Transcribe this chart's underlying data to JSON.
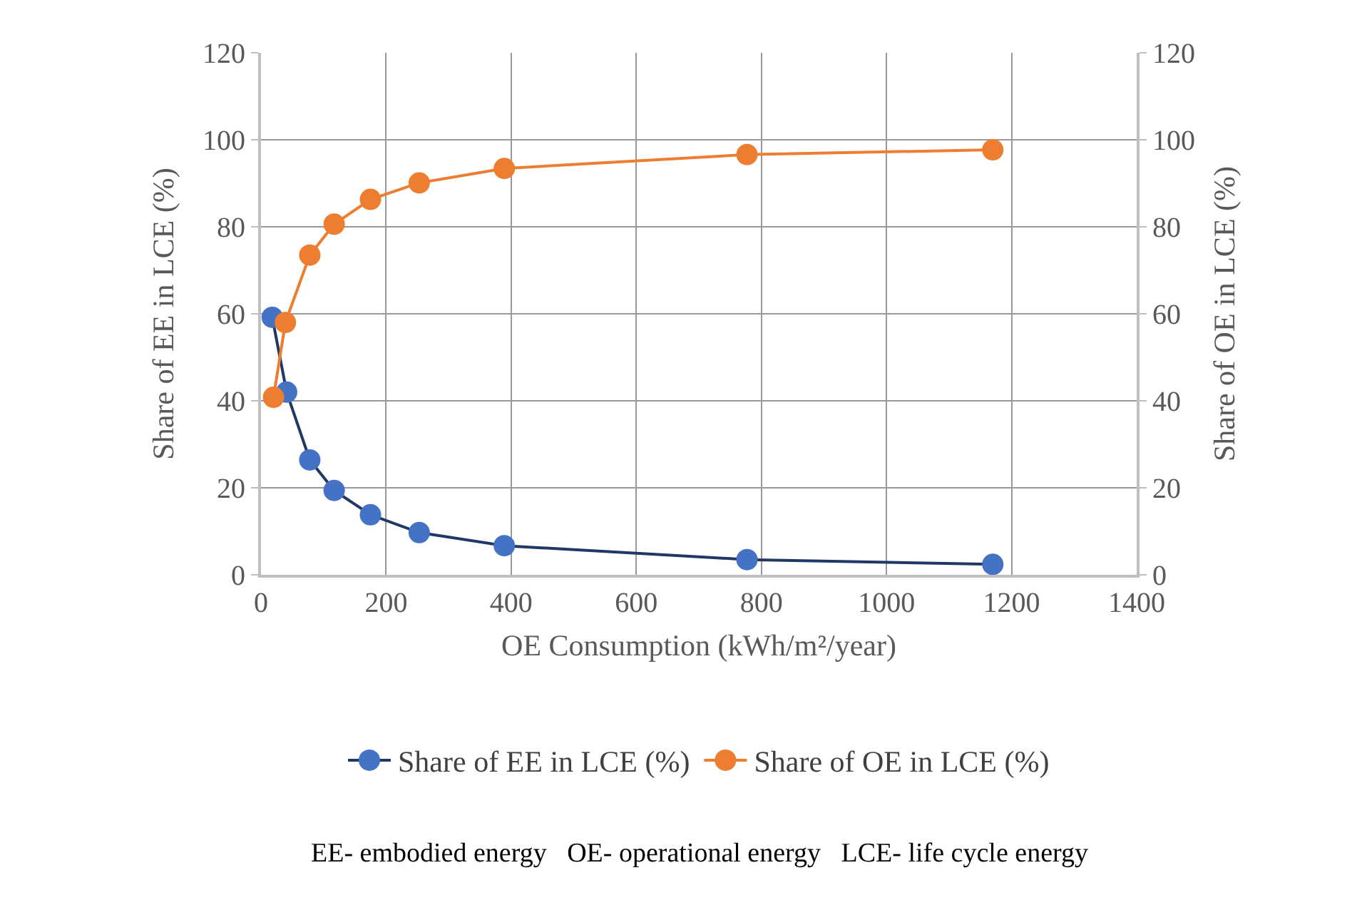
{
  "chart_data": {
    "type": "line",
    "xlabel": "OE Consumption (kWh/m²/year)",
    "ylabel": "Share of EE in LCE (%)",
    "y2label": "Share of OE in LCE (%)",
    "xlim": [
      0,
      1400
    ],
    "xticks": [
      0,
      200,
      400,
      600,
      800,
      1000,
      1200,
      1400
    ],
    "ylim": [
      0,
      120
    ],
    "yticks": [
      0,
      20,
      40,
      60,
      80,
      100,
      120
    ],
    "y2lim": [
      0,
      120
    ],
    "y2ticks": [
      0,
      20,
      40,
      60,
      80,
      100,
      120
    ],
    "grid": true,
    "legend": "bottom",
    "marker": "circle",
    "line_style": "solid",
    "series": [
      {
        "name": "Share of EE in LCE (%)",
        "color": "#4472c4",
        "x": [
          18,
          41,
          78,
          117,
          175,
          253,
          389,
          777,
          1170
        ],
        "values": [
          59.2,
          42.0,
          26.4,
          19.4,
          13.8,
          9.7,
          6.7,
          3.5,
          2.4
        ]
      },
      {
        "name": "Share of OE in LCE (%)",
        "color": "#ed7d31",
        "axis": "y2",
        "x": [
          20,
          39,
          78,
          117,
          175,
          253,
          389,
          777,
          1170
        ],
        "values": [
          40.8,
          58.0,
          73.5,
          80.6,
          86.3,
          90.1,
          93.4,
          96.6,
          97.7
        ]
      }
    ],
    "annotations": [
      "EE- embodied energy   OE- operational energy   LCE- life cycle energy"
    ]
  }
}
